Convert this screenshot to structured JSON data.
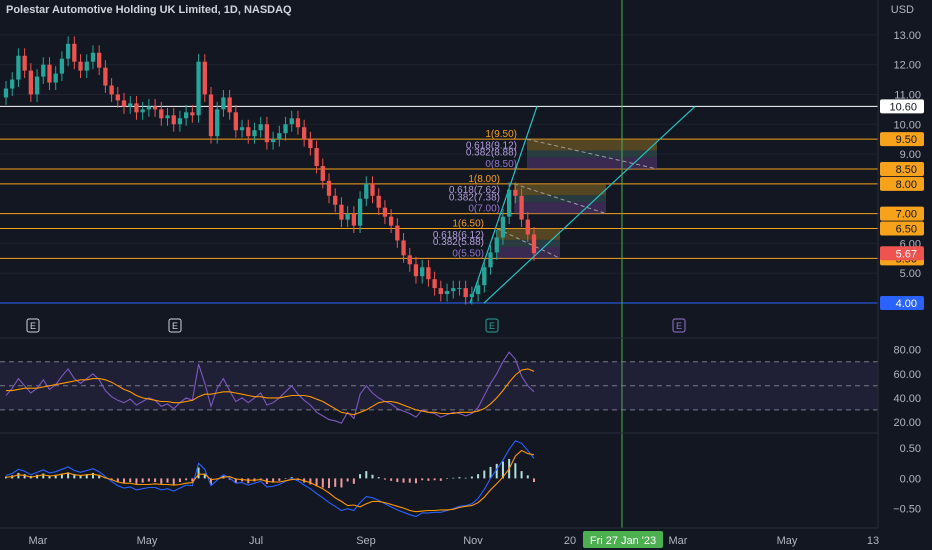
{
  "header": {
    "title": "Polestar Automotive Holding UK Limited, 1D, NASDAQ",
    "currency": "USD"
  },
  "colors": {
    "background": "#131722",
    "up": "#26a69a",
    "down": "#ef5350",
    "orange_line": "#f7a21b",
    "white_line": "#ffffff",
    "blue_line": "#2962ff",
    "cyan_line": "#22c3c3",
    "green_vline": "#4caf50",
    "rsi": "#7e57c2",
    "macd": "#2962ff",
    "signal": "#ff9800"
  },
  "chart_data": [
    {
      "type": "candlestick",
      "title": "Polestar Automotive Holding UK Limited, 1D, NASDAQ",
      "y_ticks": [
        "13.00",
        "12.00",
        "11.00",
        "10.00",
        "9.00",
        "8.00",
        "7.00",
        "6.00",
        "5.00"
      ],
      "ylim": [
        3.9,
        13.6
      ],
      "x_ticks": [
        "Mar",
        "May",
        "Jul",
        "Sep",
        "Nov",
        "20",
        "Mar",
        "May",
        "13"
      ],
      "crosshair_date": "Fri 27 Jan '23",
      "last_price": "5.67",
      "horizontal_levels": [
        {
          "price": 10.6,
          "label": "10.60",
          "color": "white"
        },
        {
          "price": 9.5,
          "label": "9.50",
          "color": "orange"
        },
        {
          "price": 8.5,
          "label": "8.50",
          "color": "orange"
        },
        {
          "price": 8.0,
          "label": "8.00",
          "color": "orange"
        },
        {
          "price": 7.0,
          "label": "7.00",
          "color": "orange"
        },
        {
          "price": 6.5,
          "label": "6.50",
          "color": "orange"
        },
        {
          "price": 5.5,
          "label": "5.50",
          "color": "orange"
        },
        {
          "price": 4.0,
          "label": "4.00",
          "color": "blue"
        }
      ],
      "fib_labels": [
        {
          "text": "1(9.50)",
          "price": 9.5
        },
        {
          "text": "0.618(9.12)",
          "price": 9.12
        },
        {
          "text": "0.382(8.88)",
          "price": 8.88
        },
        {
          "text": "0(8.50)",
          "price": 8.5
        },
        {
          "text": "1(8.00)",
          "price": 8.0
        },
        {
          "text": "0.618(7.62)",
          "price": 7.62
        },
        {
          "text": "0.382(7.38)",
          "price": 7.38
        },
        {
          "text": "0(7.00)",
          "price": 7.0
        },
        {
          "text": "1(6.50)",
          "price": 6.5
        },
        {
          "text": "0.618(6.12)",
          "price": 6.12
        },
        {
          "text": "0.382(5.88)",
          "price": 5.88
        },
        {
          "text": "0(5.50)",
          "price": 5.5
        }
      ],
      "earnings_markers": [
        "E",
        "E",
        "E",
        "E"
      ],
      "close_series": [
        11.2,
        11.5,
        12.3,
        11.8,
        11.0,
        11.6,
        12.0,
        11.4,
        11.7,
        12.2,
        12.7,
        12.1,
        11.8,
        12.1,
        12.4,
        11.9,
        11.3,
        11.0,
        10.8,
        10.6,
        10.7,
        10.4,
        10.5,
        10.6,
        10.5,
        10.2,
        10.3,
        10.0,
        10.2,
        10.4,
        10.3,
        12.1,
        11.0,
        9.6,
        10.5,
        10.9,
        10.4,
        9.8,
        9.9,
        9.6,
        9.8,
        10.0,
        9.4,
        9.5,
        9.7,
        10.0,
        10.2,
        9.9,
        9.5,
        9.2,
        8.6,
        8.1,
        7.6,
        7.3,
        6.8,
        7.0,
        6.6,
        7.5,
        8.0,
        7.6,
        7.2,
        6.9,
        6.6,
        6.1,
        5.6,
        5.3,
        4.9,
        5.2,
        4.8,
        4.5,
        4.3,
        4.4,
        4.5,
        4.5,
        4.2,
        4.3,
        4.6,
        5.2,
        5.7,
        6.2,
        6.9,
        7.8,
        7.6,
        6.8,
        6.3,
        5.67
      ]
    },
    {
      "type": "line",
      "title": "",
      "y_ticks": [
        "80.00",
        "60.00",
        "40.00",
        "20.00"
      ],
      "ylim": [
        15,
        88
      ],
      "bands": [
        70,
        50,
        30
      ],
      "series": [
        {
          "values": [
            42,
            48,
            56,
            50,
            44,
            48,
            55,
            47,
            51,
            58,
            64,
            56,
            52,
            56,
            60,
            55,
            46,
            41,
            38,
            36,
            39,
            34,
            37,
            40,
            38,
            33,
            35,
            31,
            36,
            40,
            38,
            68,
            52,
            33,
            48,
            56,
            46,
            37,
            40,
            36,
            40,
            44,
            34,
            36,
            40,
            45,
            50,
            43,
            38,
            34,
            28,
            25,
            22,
            21,
            19,
            28,
            23,
            43,
            50,
            44,
            40,
            37,
            35,
            31,
            29,
            27,
            24,
            30,
            28,
            27,
            24,
            26,
            28,
            27,
            25,
            27,
            32,
            42,
            52,
            60,
            70,
            78,
            72,
            58,
            50,
            45
          ]
        },
        {
          "values": [
            46,
            46,
            47,
            48,
            48,
            48,
            49,
            50,
            51,
            52,
            53,
            54,
            55,
            55,
            56,
            56,
            55,
            53,
            50,
            47,
            45,
            42,
            40,
            39,
            38,
            37,
            37,
            36,
            36,
            37,
            38,
            41,
            43,
            43,
            44,
            45,
            45,
            44,
            43,
            42,
            41,
            41,
            40,
            40,
            40,
            41,
            42,
            42,
            42,
            41,
            39,
            37,
            34,
            31,
            28,
            27,
            26,
            28,
            30,
            33,
            36,
            37,
            37,
            36,
            34,
            32,
            30,
            29,
            28,
            28,
            27,
            27,
            27,
            28,
            28,
            28,
            29,
            31,
            35,
            40,
            46,
            53,
            59,
            63,
            64,
            62
          ]
        }
      ]
    },
    {
      "type": "bar",
      "title": "",
      "y_ticks": [
        "0.50",
        "0.00",
        "−0.50"
      ],
      "ylim": [
        -0.72,
        0.7
      ],
      "histogram": [
        0.03,
        0.05,
        0.09,
        0.07,
        0.04,
        0.06,
        0.08,
        0.05,
        0.06,
        0.08,
        0.1,
        0.07,
        0.05,
        0.07,
        0.09,
        0.06,
        0.02,
        -0.03,
        -0.06,
        -0.08,
        -0.06,
        -0.09,
        -0.07,
        -0.05,
        -0.06,
        -0.09,
        -0.07,
        -0.1,
        -0.06,
        -0.03,
        -0.05,
        0.18,
        0.08,
        -0.1,
        -0.02,
        0.04,
        -0.02,
        -0.07,
        -0.05,
        -0.08,
        -0.05,
        -0.03,
        -0.09,
        -0.07,
        -0.04,
        -0.01,
        0.02,
        -0.03,
        -0.07,
        -0.1,
        -0.13,
        -0.15,
        -0.16,
        -0.14,
        -0.15,
        -0.05,
        -0.09,
        0.07,
        0.12,
        0.06,
        0.02,
        -0.02,
        -0.04,
        -0.06,
        -0.07,
        -0.07,
        -0.08,
        -0.03,
        -0.04,
        -0.03,
        -0.04,
        -0.01,
        0.01,
        0.02,
        0.01,
        0.03,
        0.07,
        0.13,
        0.19,
        0.24,
        0.28,
        0.32,
        0.25,
        0.12,
        0.05,
        -0.06
      ],
      "series": [
        {
          "values": [
            0.05,
            0.08,
            0.15,
            0.12,
            0.06,
            0.1,
            0.14,
            0.09,
            0.11,
            0.15,
            0.19,
            0.13,
            0.1,
            0.13,
            0.16,
            0.11,
            0.03,
            -0.05,
            -0.12,
            -0.16,
            -0.14,
            -0.19,
            -0.17,
            -0.15,
            -0.15,
            -0.19,
            -0.17,
            -0.21,
            -0.16,
            -0.11,
            -0.12,
            0.25,
            0.15,
            -0.12,
            -0.03,
            0.06,
            0.01,
            -0.08,
            -0.07,
            -0.11,
            -0.08,
            -0.05,
            -0.14,
            -0.13,
            -0.1,
            -0.05,
            0.0,
            -0.04,
            -0.11,
            -0.17,
            -0.25,
            -0.32,
            -0.4,
            -0.46,
            -0.53,
            -0.5,
            -0.53,
            -0.4,
            -0.3,
            -0.32,
            -0.36,
            -0.42,
            -0.47,
            -0.52,
            -0.56,
            -0.6,
            -0.63,
            -0.57,
            -0.57,
            -0.56,
            -0.56,
            -0.53,
            -0.5,
            -0.46,
            -0.45,
            -0.42,
            -0.33,
            -0.18,
            0.0,
            0.15,
            0.3,
            0.48,
            0.62,
            0.58,
            0.46,
            0.33
          ]
        },
        {
          "values": [
            0.02,
            0.03,
            0.06,
            0.05,
            0.02,
            0.04,
            0.06,
            0.04,
            0.05,
            0.07,
            0.09,
            0.06,
            0.05,
            0.06,
            0.07,
            0.05,
            0.01,
            -0.02,
            -0.06,
            -0.08,
            -0.08,
            -0.1,
            -0.1,
            -0.1,
            -0.09,
            -0.1,
            -0.1,
            -0.11,
            -0.1,
            -0.08,
            -0.07,
            0.07,
            0.07,
            -0.02,
            -0.01,
            0.02,
            0.03,
            -0.01,
            -0.02,
            -0.03,
            -0.03,
            -0.02,
            -0.05,
            -0.06,
            -0.06,
            -0.04,
            -0.02,
            -0.01,
            -0.04,
            -0.07,
            -0.12,
            -0.17,
            -0.24,
            -0.32,
            -0.38,
            -0.45,
            -0.44,
            -0.47,
            -0.42,
            -0.38,
            -0.38,
            -0.4,
            -0.43,
            -0.46,
            -0.49,
            -0.53,
            -0.55,
            -0.54,
            -0.53,
            -0.53,
            -0.52,
            -0.52,
            -0.51,
            -0.48,
            -0.46,
            -0.45,
            -0.4,
            -0.31,
            -0.19,
            -0.09,
            0.02,
            0.16,
            0.37,
            0.46,
            0.41,
            0.39
          ]
        }
      ]
    }
  ]
}
